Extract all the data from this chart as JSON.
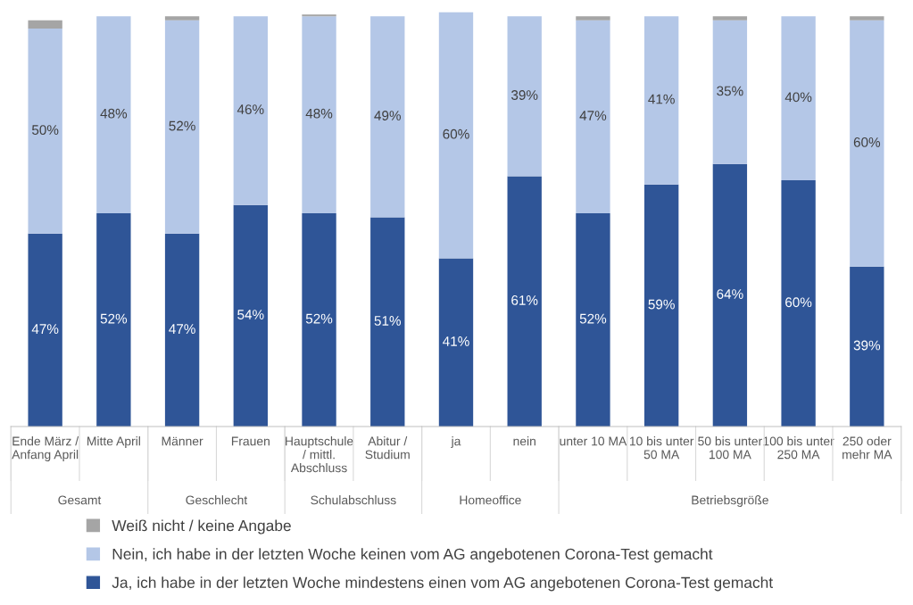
{
  "chart_data": {
    "type": "bar",
    "stacked": true,
    "legend": "bottom",
    "grid": false,
    "categories": [
      "Ende März /\nAnfang April",
      "Mitte April",
      "Männer",
      "Frauen",
      "Hauptschule\n/ mittl.\nAbschluss",
      "Abitur /\nStudium",
      "ja",
      "nein",
      "unter 10 MA",
      "10 bis unter\n50 MA",
      "50 bis unter\n100 MA",
      "100 bis unter\n250 MA",
      "250 oder\nmehr MA"
    ],
    "series": [
      {
        "name": "Ja, ich habe in der letzten Woche mindestens einen vom AG angebotenen Corona-Test gemacht",
        "color": "#2f5597",
        "values": [
          47,
          52,
          47,
          54,
          52,
          51,
          41,
          61,
          52,
          59,
          64,
          60,
          39
        ],
        "value_labels": [
          "47%",
          "52%",
          "47%",
          "54%",
          "52%",
          "51%",
          "41%",
          "61%",
          "52%",
          "59%",
          "64%",
          "60%",
          "39%"
        ]
      },
      {
        "name": "Nein, ich habe in der letzten Woche keinen vom AG angebotenen Corona-Test gemacht",
        "color": "#b4c7e7",
        "values": [
          50,
          48,
          52,
          46,
          48,
          49,
          60,
          39,
          47,
          41,
          35,
          40,
          60
        ],
        "value_labels": [
          "50%",
          "48%",
          "52%",
          "46%",
          "48%",
          "49%",
          "60%",
          "39%",
          "47%",
          "41%",
          "35%",
          "40%",
          "60%"
        ]
      },
      {
        "name": "Weiß nicht / keine Angabe",
        "color": "#a5a5a5",
        "values": [
          2,
          0,
          1,
          0,
          0.4,
          0,
          0,
          0,
          1,
          0,
          1,
          0,
          1
        ]
      }
    ],
    "annotations": [
      "Gesamt",
      "Geschlecht",
      "Schulabschluss",
      "Homeoffice",
      "Betriebsgröße"
    ]
  }
}
